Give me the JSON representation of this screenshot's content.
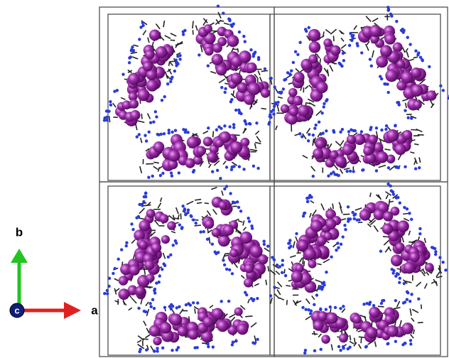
{
  "axes": {
    "b": "b",
    "c": "c",
    "a": "a"
  }
}
